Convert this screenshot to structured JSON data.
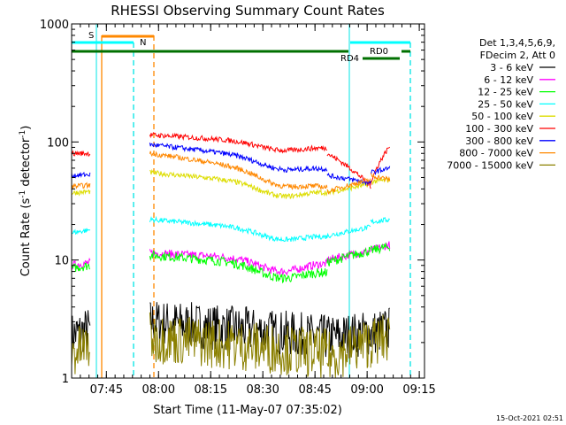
{
  "chart_data": {
    "type": "line",
    "title": "RHESSI Observing Summary Count Rates",
    "xlabel": "Start Time (11-May-07 07:35:02)",
    "ylabel_main": "Count Rate (s",
    "ylabel_sup1": "-1",
    "ylabel_mid": " detector",
    "ylabel_sup2": "-1",
    "ylabel_end": ")",
    "yscale": "log",
    "ylim": [
      1,
      1000
    ],
    "xlim_minutes": [
      0,
      101.5
    ],
    "x_ticks": [
      {
        "label": "07:45",
        "minute": 10
      },
      {
        "label": "08:00",
        "minute": 25
      },
      {
        "label": "08:15",
        "minute": 40
      },
      {
        "label": "08:30",
        "minute": 55
      },
      {
        "label": "08:45",
        "minute": 70
      },
      {
        "label": "09:00",
        "minute": 85
      },
      {
        "label": "09:15",
        "minute": 100
      }
    ],
    "y_ticks": [
      {
        "label": "1",
        "value": 1
      },
      {
        "label": "10",
        "value": 10
      },
      {
        "label": "100",
        "value": 100
      },
      {
        "label": "1000",
        "value": 1000
      }
    ],
    "legend": {
      "position": "top-right",
      "header": [
        "Det 1,3,4,5,6,9,",
        "FDecim 2, Att 0"
      ]
    },
    "series": [
      {
        "name": "3 - 6 keV",
        "color": "#000000"
      },
      {
        "name": "6 - 12 keV",
        "color": "#ff00ff"
      },
      {
        "name": "12 - 25 keV",
        "color": "#00ff00"
      },
      {
        "name": "25 - 50 keV",
        "color": "#00ffff"
      },
      {
        "name": "50 - 100 keV",
        "color": "#dddd00"
      },
      {
        "name": "100 - 300 keV",
        "color": "#ff0000"
      },
      {
        "name": "300 - 800 keV",
        "color": "#0000ff"
      },
      {
        "name": "800 - 7000 keV",
        "color": "#ff8800"
      },
      {
        "name": "7000 - 15000 keV",
        "color": "#8b8000"
      }
    ],
    "annotations": {
      "saa_label": "S",
      "night_label": "N",
      "rd0_label": "RD0",
      "rd4_label": "RD4"
    }
  },
  "timestamp": "15-Oct-2021 02:51"
}
